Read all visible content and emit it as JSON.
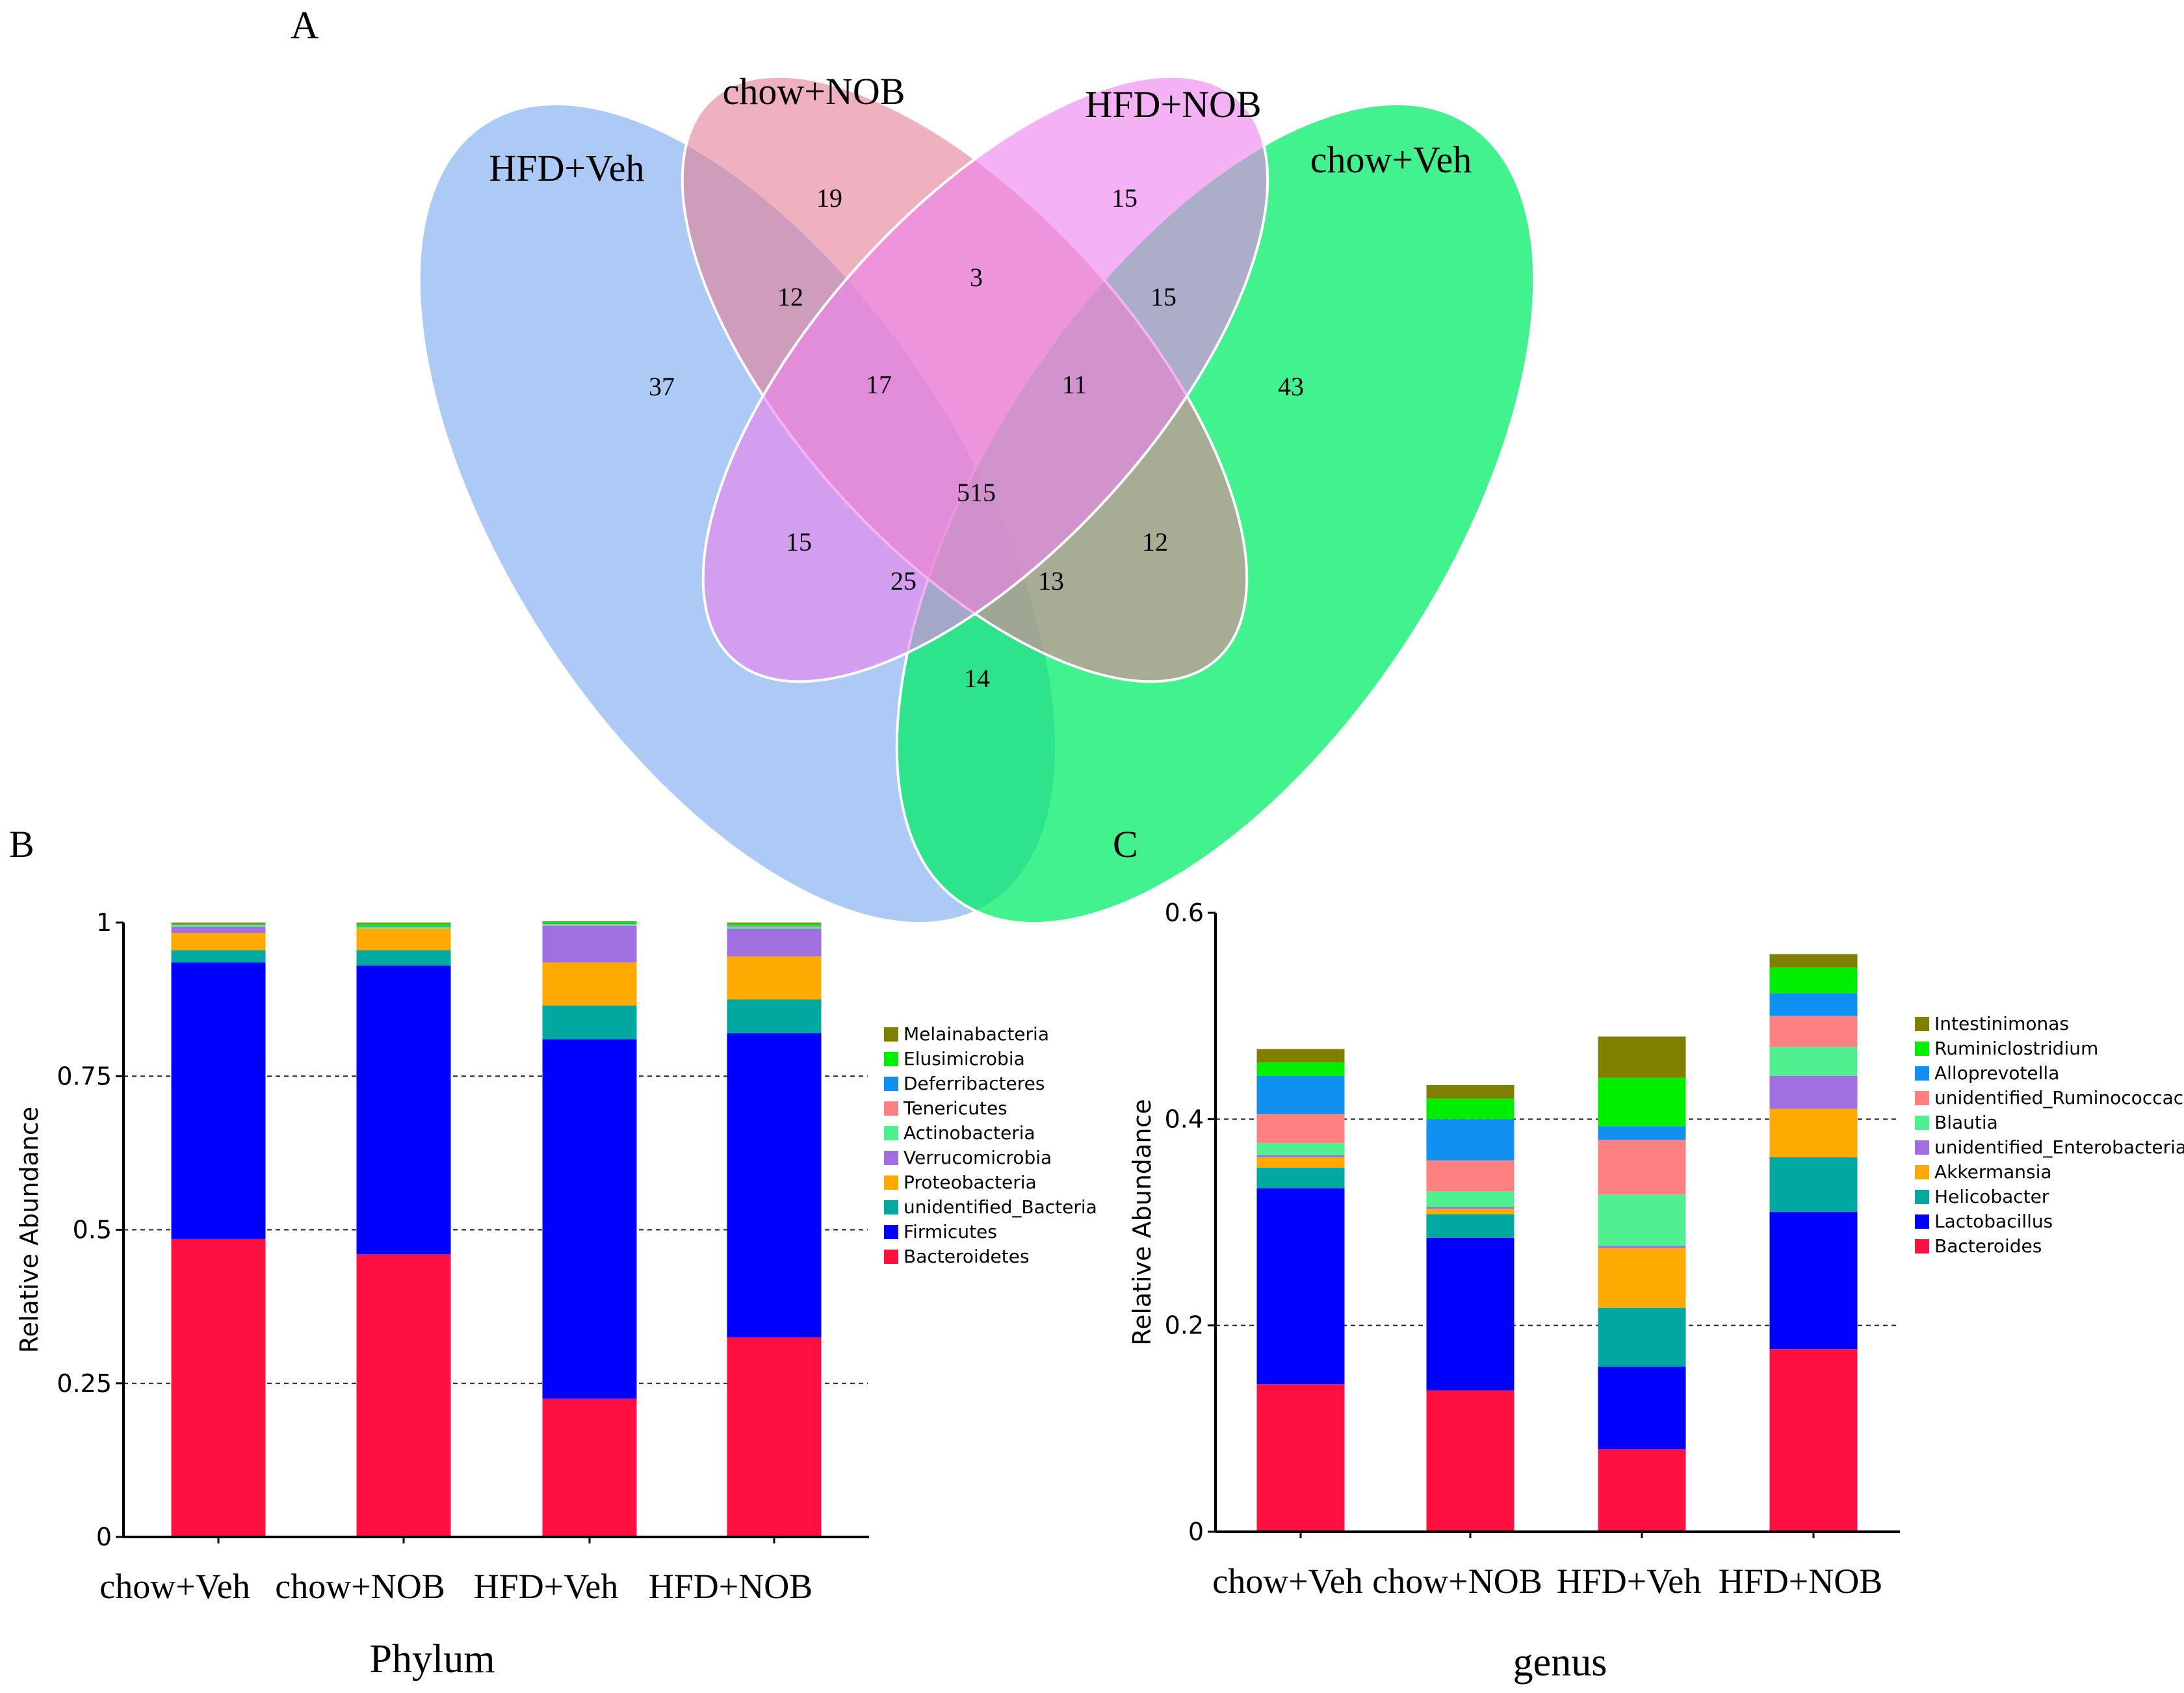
{
  "chart_data": [
    {
      "type": "venn",
      "panel_label": "A",
      "sets": [
        "HFD+Veh",
        "chow+NOB",
        "HFD+NOB",
        "chow+Veh"
      ],
      "colors": {
        "HFD+Veh": "#8fb8f2",
        "chow+NOB": "#e5819a",
        "HFD+NOB": "#ee82ee",
        "chow+Veh": "#00ee66",
        "bottom_overlap": "#00c8a8"
      },
      "regions": [
        {
          "sets": [
            "HFD+Veh"
          ],
          "value": "37"
        },
        {
          "sets": [
            "chow+NOB"
          ],
          "value": "19"
        },
        {
          "sets": [
            "HFD+NOB"
          ],
          "value": "15"
        },
        {
          "sets": [
            "chow+Veh"
          ],
          "value": "43"
        },
        {
          "sets": [
            "HFD+Veh",
            "chow+NOB"
          ],
          "value": "12"
        },
        {
          "sets": [
            "chow+NOB",
            "HFD+NOB"
          ],
          "value": "3"
        },
        {
          "sets": [
            "HFD+NOB",
            "chow+Veh"
          ],
          "value": "15"
        },
        {
          "sets": [
            "HFD+Veh",
            "chow+NOB",
            "HFD+NOB"
          ],
          "value": "17"
        },
        {
          "sets": [
            "chow+NOB",
            "HFD+NOB",
            "chow+Veh"
          ],
          "value": "11"
        },
        {
          "sets": [
            "HFD+Veh",
            "chow+NOB",
            "HFD+NOB",
            "chow+Veh"
          ],
          "value": "515"
        },
        {
          "sets": [
            "HFD+Veh",
            "HFD+NOB"
          ],
          "value": "15"
        },
        {
          "sets": [
            "chow+NOB",
            "chow+Veh"
          ],
          "value": "12"
        },
        {
          "sets": [
            "HFD+Veh",
            "HFD+NOB",
            "chow+Veh"
          ],
          "value": "25"
        },
        {
          "sets": [
            "HFD+Veh",
            "chow+NOB",
            "chow+Veh"
          ],
          "value": "13"
        },
        {
          "sets": [
            "HFD+Veh",
            "chow+Veh"
          ],
          "value": "14"
        }
      ]
    },
    {
      "type": "bar",
      "stacked": true,
      "panel_label": "B",
      "title": "",
      "xlabel": "Phylum",
      "ylabel": "Relative Abundance",
      "ylim": [
        0,
        1
      ],
      "yticks": [
        0,
        0.25,
        0.5,
        0.75,
        1
      ],
      "ytick_labels": [
        "0",
        "0.25",
        "0.5",
        "0.75",
        "1"
      ],
      "gridlines": [
        0.25,
        0.5,
        0.75
      ],
      "categories": [
        "chow+Veh",
        "chow+NOB",
        "HFD+Veh",
        "HFD+NOB"
      ],
      "legend_position": "right",
      "series": [
        {
          "name": "Bacteroidetes",
          "color": "#ff1040",
          "values": [
            0.485,
            0.46,
            0.225,
            0.325
          ]
        },
        {
          "name": "Firmicutes",
          "color": "#0000ff",
          "values": [
            0.45,
            0.47,
            0.585,
            0.495
          ]
        },
        {
          "name": "unidentified_Bacteria",
          "color": "#00a8a0",
          "values": [
            0.02,
            0.025,
            0.055,
            0.055
          ]
        },
        {
          "name": "Proteobacteria",
          "color": "#ffaa00",
          "values": [
            0.028,
            0.035,
            0.07,
            0.07
          ]
        },
        {
          "name": "Verrucomicrobia",
          "color": "#a070e0",
          "values": [
            0.01,
            0.0,
            0.06,
            0.045
          ]
        },
        {
          "name": "Actinobacteria",
          "color": "#50f090",
          "values": [
            0.002,
            0.002,
            0.002,
            0.003
          ]
        },
        {
          "name": "Tenericutes",
          "color": "#ff8080",
          "values": [
            0.001,
            0.001,
            0.001,
            0.001
          ]
        },
        {
          "name": "Deferribacteres",
          "color": "#1090f0",
          "values": [
            0.001,
            0.001,
            0.001,
            0.001
          ]
        },
        {
          "name": "Elusimicrobia",
          "color": "#00ee00",
          "values": [
            0.001,
            0.004,
            0.002,
            0.003
          ]
        },
        {
          "name": "Melainabacteria",
          "color": "#808000",
          "values": [
            0.002,
            0.002,
            0.001,
            0.002
          ]
        }
      ]
    },
    {
      "type": "bar",
      "stacked": true,
      "panel_label": "C",
      "title": "",
      "xlabel": "genus",
      "ylabel": "Relative Abundance",
      "ylim": [
        0,
        0.6
      ],
      "yticks": [
        0,
        0.2,
        0.4,
        0.6
      ],
      "ytick_labels": [
        "0",
        "0.2",
        "0.4",
        "0.6"
      ],
      "gridlines": [
        0.2,
        0.4
      ],
      "categories": [
        "chow+Veh",
        "chow+NOB",
        "HFD+Veh",
        "HFD+NOB"
      ],
      "legend_position": "right",
      "series": [
        {
          "name": "Bacteroides",
          "color": "#ff1040",
          "values": [
            0.143,
            0.137,
            0.08,
            0.177
          ]
        },
        {
          "name": "Lactobacillus",
          "color": "#0000ff",
          "values": [
            0.19,
            0.148,
            0.08,
            0.133
          ]
        },
        {
          "name": "Helicobacter",
          "color": "#00a8a0",
          "values": [
            0.02,
            0.023,
            0.057,
            0.053
          ]
        },
        {
          "name": "Akkermansia",
          "color": "#ffaa00",
          "values": [
            0.01,
            0.005,
            0.058,
            0.047
          ]
        },
        {
          "name": "unidentified_Enterobacteriaceae",
          "color": "#a070e0",
          "values": [
            0.002,
            0.002,
            0.002,
            0.032
          ]
        },
        {
          "name": "Blautia",
          "color": "#50f090",
          "values": [
            0.012,
            0.015,
            0.05,
            0.028
          ]
        },
        {
          "name": "unidentified_Ruminococcaceae",
          "color": "#ff8080",
          "values": [
            0.028,
            0.03,
            0.053,
            0.03
          ]
        },
        {
          "name": "Alloprevotella",
          "color": "#1090f0",
          "values": [
            0.037,
            0.04,
            0.013,
            0.022
          ]
        },
        {
          "name": "Ruminiclostridium",
          "color": "#00ee00",
          "values": [
            0.013,
            0.02,
            0.047,
            0.025
          ]
        },
        {
          "name": "Intestinimonas",
          "color": "#808000",
          "values": [
            0.013,
            0.013,
            0.04,
            0.013
          ]
        }
      ]
    }
  ]
}
